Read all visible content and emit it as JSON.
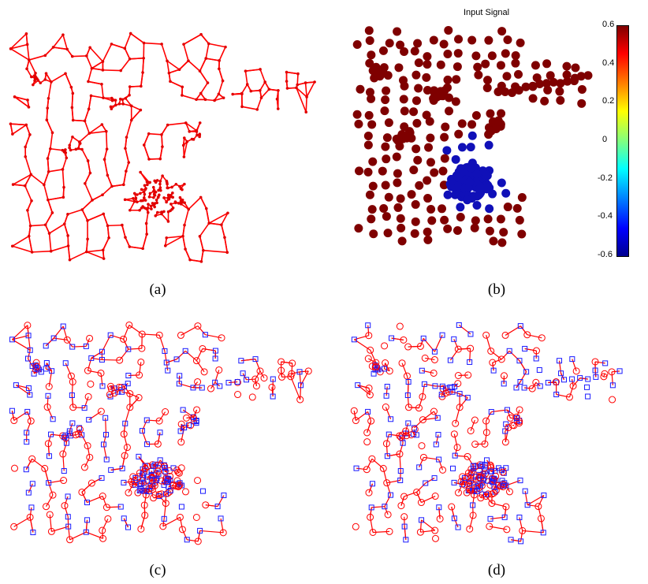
{
  "panels": {
    "a": {
      "caption": "(a)"
    },
    "b": {
      "caption": "(b)",
      "title": "Input Signal"
    },
    "c": {
      "caption": "(c)"
    },
    "d": {
      "caption": "(d)"
    }
  },
  "colorbar": {
    "ticks": [
      "0.6",
      "0.4",
      "0.2",
      "0",
      "-0.2",
      "-0.4",
      "-0.6"
    ],
    "range": [
      -0.6,
      0.6
    ]
  },
  "colors": {
    "graph_edge": "#ff0000",
    "graph_node": "#e00000",
    "signal_high": "#7f0000",
    "signal_low": "#1010b8",
    "square_marker": "#1a1aff",
    "circle_marker": "#ff0000"
  }
}
